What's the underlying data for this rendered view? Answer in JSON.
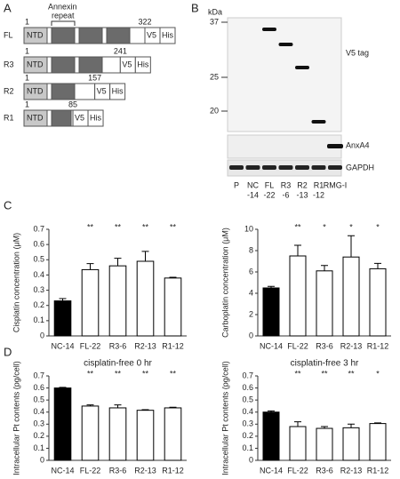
{
  "panels": [
    "A",
    "B",
    "C",
    "D"
  ],
  "diagram": {
    "annexin_label": [
      "Annexin",
      "repeat"
    ],
    "ntd": "NTD",
    "tags": [
      "V5",
      "His"
    ],
    "constructs": [
      {
        "name": "FL",
        "start": "1",
        "end": "322"
      },
      {
        "name": "R3",
        "start": "1",
        "end": "241"
      },
      {
        "name": "R2",
        "start": "1",
        "end": "157"
      },
      {
        "name": "R1",
        "start": "1",
        "end": "85"
      }
    ]
  },
  "blot": {
    "unit": "kDa",
    "markers": [
      "37",
      "25",
      "20"
    ],
    "targets": [
      "V5 tag",
      "AnxA4",
      "GAPDH"
    ],
    "lanes": [
      [
        "P"
      ],
      [
        "NC",
        "-14"
      ],
      [
        "FL",
        "-22"
      ],
      [
        "R3",
        "-6"
      ],
      [
        "R2",
        "-13"
      ],
      [
        "R1",
        "-12"
      ],
      [
        "RMG-I"
      ]
    ]
  },
  "chart_data": [
    {
      "type": "bar",
      "y_label": "Cisplatin concentration (μM)",
      "categories": [
        "NC-14",
        "FL-22",
        "R3-6",
        "R2-13",
        "R1-12"
      ],
      "values": [
        0.23,
        0.435,
        0.46,
        0.49,
        0.38
      ],
      "errors": [
        0.015,
        0.04,
        0.05,
        0.065,
        0.005
      ],
      "colors": [
        "#000000",
        "#ffffff",
        "#ffffff",
        "#ffffff",
        "#ffffff"
      ],
      "annotations": [
        null,
        "**",
        "**",
        "**",
        "**"
      ],
      "ylim": [
        0,
        0.7
      ],
      "yticks": [
        0,
        0.1,
        0.2,
        0.3,
        0.4,
        0.5,
        0.6,
        0.7
      ]
    },
    {
      "type": "bar",
      "y_label": "Carboplatin concentration (μM)",
      "categories": [
        "NC-14",
        "FL-22",
        "R3-6",
        "R2-13",
        "R1-12"
      ],
      "values": [
        4.5,
        7.5,
        6.1,
        7.4,
        6.3
      ],
      "errors": [
        0.15,
        1.0,
        0.5,
        2.0,
        0.5
      ],
      "colors": [
        "#000000",
        "#ffffff",
        "#ffffff",
        "#ffffff",
        "#ffffff"
      ],
      "annotations": [
        null,
        "**",
        "*",
        "*",
        "*"
      ],
      "ylim": [
        0,
        10
      ],
      "yticks": [
        0,
        2,
        4,
        6,
        8,
        10
      ]
    },
    {
      "type": "bar",
      "title": "cisplatin-free 0 hr",
      "y_label": "Intracellular Pt contents (pg/cell)",
      "categories": [
        "NC-14",
        "FL-22",
        "R3-6",
        "R2-13",
        "R1-12"
      ],
      "values": [
        0.6,
        0.45,
        0.435,
        0.415,
        0.435
      ],
      "errors": [
        0.005,
        0.01,
        0.025,
        0.005,
        0.005
      ],
      "colors": [
        "#000000",
        "#ffffff",
        "#ffffff",
        "#ffffff",
        "#ffffff"
      ],
      "annotations": [
        null,
        "**",
        "**",
        "**",
        "**"
      ],
      "ylim": [
        0,
        0.7
      ],
      "yticks": [
        0,
        0.1,
        0.2,
        0.3,
        0.4,
        0.5,
        0.6,
        0.7
      ]
    },
    {
      "type": "bar",
      "title": "cisplatin-free 3 hr",
      "y_label": "Intracellular Pt contents (pg/cell)",
      "categories": [
        "NC-14",
        "FL-22",
        "R3-6",
        "R2-13",
        "R1-12"
      ],
      "values": [
        0.4,
        0.28,
        0.265,
        0.27,
        0.305
      ],
      "errors": [
        0.01,
        0.04,
        0.015,
        0.03,
        0.005
      ],
      "colors": [
        "#000000",
        "#ffffff",
        "#ffffff",
        "#ffffff",
        "#ffffff"
      ],
      "annotations": [
        null,
        "**",
        "**",
        "**",
        "*"
      ],
      "ylim": [
        0,
        0.7
      ],
      "yticks": [
        0,
        0.1,
        0.2,
        0.3,
        0.4,
        0.5,
        0.6,
        0.7
      ]
    }
  ]
}
